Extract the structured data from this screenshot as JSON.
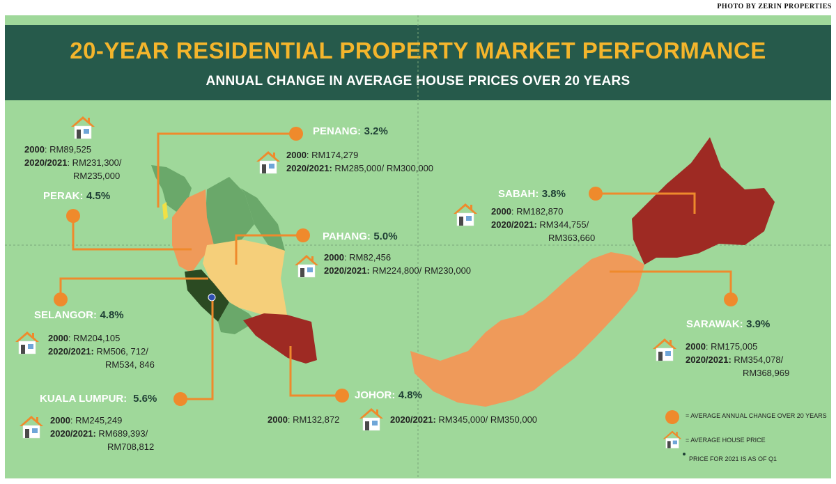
{
  "credit": "PHOTO BY ZERIN PROPERTIES",
  "title": "20-YEAR RESIDENTIAL PROPERTY MARKET PERFORMANCE",
  "subtitle": "ANNUAL CHANGE IN AVERAGE HOUSE PRICES OVER 20 YEARS",
  "colors": {
    "header": "#265a4b",
    "title": "#f4b52c",
    "background": "#9fd89a",
    "marker": "#ef8a2c"
  },
  "top_left": {
    "line1_label": "2000",
    "line1_value": ": RM89,525",
    "line2_label": "2020/2021",
    "line2_value": ": RM231,300/",
    "line3": "RM235,000"
  },
  "penang": {
    "name": "PENANG:",
    "pct": "3.2%",
    "line1_label": "2000",
    "line1_value": ": RM174,279",
    "line2_label": "2020/2021:",
    "line2_value": " RM285,000/ RM300,000"
  },
  "perak": {
    "name": "PERAK:",
    "pct": "4.5%"
  },
  "pahang": {
    "name": "PAHANG:",
    "pct": "5.0%",
    "line1_label": "2000",
    "line1_value": ": RM82,456",
    "line2_label": "2020/2021:",
    "line2_value": " RM224,800/ RM230,000"
  },
  "selangor": {
    "name": "SELANGOR:",
    "pct": "4.8%",
    "line1_label": "2000",
    "line1_value": ": RM204,105",
    "line2_label": "2020/2021:",
    "line2_value": " RM506, 712/",
    "line3": "RM534, 846"
  },
  "kl": {
    "name": "KUALA LUMPUR:",
    "pct": "5.6%",
    "line1_label": "2000",
    "line1_value": ": RM245,249",
    "line2_label": "2020/2021:",
    "line2_value": " RM689,393/",
    "line3": "RM708,812"
  },
  "johor": {
    "name": "JOHOR:",
    "pct": "4.8%",
    "line1_label": "2000",
    "line1_value": ": RM132,872",
    "line2_label": "2020/2021:",
    "line2_value": " RM345,000/ RM350,000"
  },
  "sabah": {
    "name": "SABAH:",
    "pct": "3.8%",
    "line1_label": "2000",
    "line1_value": ": RM182,870",
    "line2_label": "2020/2021:",
    "line2_value": " RM344,755/",
    "line3": "RM363,660"
  },
  "sarawak": {
    "name": "SARAWAK:",
    "pct": "3.9%",
    "line1_label": "2000",
    "line1_value": ": RM175,005",
    "line2_label": "2020/2021:",
    "line2_value": " RM354,078/",
    "line3": "RM368,969"
  },
  "legend": {
    "circle": "= AVERAGE ANNUAL CHANGE  OVER 20 YEARS",
    "house": "= AVERAGE HOUSE PRICE",
    "note": "PRICE FOR 2021 IS AS OF Q1"
  }
}
